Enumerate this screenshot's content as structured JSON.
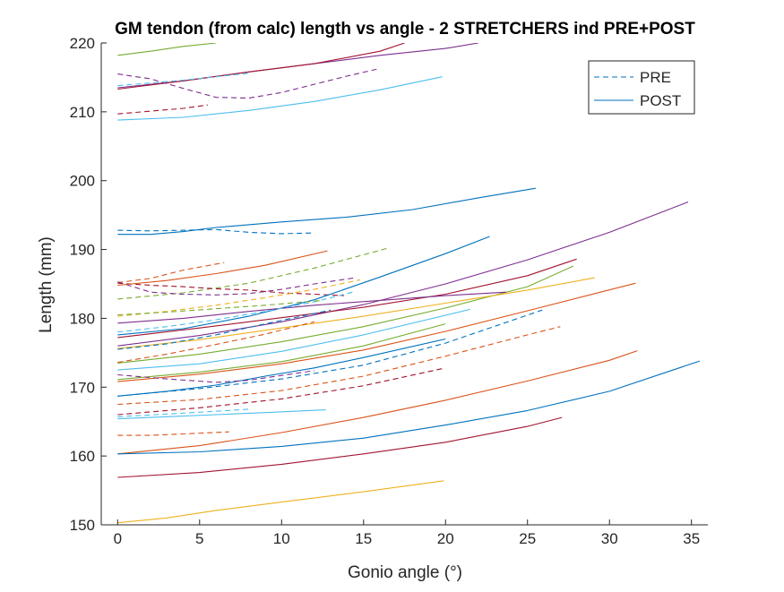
{
  "chart_data": {
    "type": "line",
    "title": "GM tendon (from calc) length vs angle - 2 STRETCHERS ind PRE+POST",
    "xlabel": "Gonio angle (°)",
    "ylabel": "Length (mm)",
    "xlim": [
      -1,
      36
    ],
    "ylim": [
      150,
      220
    ],
    "xticks": [
      0,
      5,
      10,
      15,
      20,
      25,
      30,
      35
    ],
    "yticks": [
      150,
      160,
      170,
      180,
      190,
      200,
      210,
      220
    ],
    "grid": false,
    "legend": {
      "placement": "top-right",
      "entries": [
        {
          "label": "PRE",
          "style": "dashed",
          "color": "#0072BD"
        },
        {
          "label": "POST",
          "style": "solid",
          "color": "#0072BD"
        }
      ]
    },
    "series": [
      {
        "style": "solid",
        "color": "#77AC30",
        "x": [
          0,
          2,
          4,
          6
        ],
        "y": [
          218.2,
          218.8,
          219.5,
          220
        ]
      },
      {
        "style": "solid",
        "color": "#7E2F8E",
        "x": [
          0,
          4,
          8,
          12,
          16,
          20,
          22
        ],
        "y": [
          213.5,
          214.5,
          215.8,
          217,
          218.2,
          219.2,
          220
        ]
      },
      {
        "style": "solid",
        "color": "#A2142F",
        "x": [
          0,
          4,
          8,
          12,
          16,
          17.5
        ],
        "y": [
          213.3,
          214.5,
          215.8,
          217,
          218.8,
          220
        ]
      },
      {
        "style": "solid",
        "color": "#4DBEEE",
        "x": [
          0,
          4,
          8,
          12,
          16,
          19.8
        ],
        "y": [
          208.8,
          209.2,
          210.2,
          211.5,
          213.2,
          215.1
        ]
      },
      {
        "style": "dashed",
        "color": "#7E2F8E",
        "x": [
          0,
          2,
          4,
          6,
          8,
          10,
          12,
          14,
          16
        ],
        "y": [
          215.5,
          214.8,
          213.4,
          212.1,
          212,
          212.8,
          214,
          215.2,
          216.3
        ]
      },
      {
        "style": "dashed",
        "color": "#4DBEEE",
        "x": [
          0,
          2,
          4,
          6,
          8
        ],
        "y": [
          213.8,
          214.2,
          214.6,
          215.1,
          215.6
        ]
      },
      {
        "style": "dashed",
        "color": "#A2142F",
        "x": [
          0,
          2,
          4,
          5.5
        ],
        "y": [
          209.7,
          210.1,
          210.5,
          211
        ]
      },
      {
        "style": "solid",
        "color": "#0072BD",
        "x": [
          0,
          2,
          4,
          6,
          10,
          14,
          18,
          22,
          25.5
        ],
        "y": [
          192.2,
          192.2,
          192.6,
          193.2,
          194,
          194.7,
          195.8,
          197.5,
          198.9
        ]
      },
      {
        "style": "dashed",
        "color": "#0072BD",
        "x": [
          0,
          2,
          4,
          6,
          8,
          10,
          12
        ],
        "y": [
          192.8,
          192.7,
          192.8,
          192.9,
          192.5,
          192.3,
          192.4
        ]
      },
      {
        "style": "dashed",
        "color": "#D95319",
        "x": [
          0,
          2,
          4,
          6.5
        ],
        "y": [
          185.2,
          185.8,
          187,
          188.1
        ]
      },
      {
        "style": "dashed",
        "color": "#77AC30",
        "x": [
          0,
          4,
          8,
          12,
          16.5
        ],
        "y": [
          182.8,
          183.7,
          185.1,
          187.3,
          190.2
        ]
      },
      {
        "style": "dashed",
        "color": "#7E2F8E",
        "x": [
          0,
          2,
          4,
          6,
          8,
          10,
          12,
          14.5
        ],
        "y": [
          185.3,
          183.8,
          183.5,
          183.4,
          183.6,
          184.2,
          185,
          185.9
        ]
      },
      {
        "style": "dashed",
        "color": "#A2142F",
        "x": [
          0,
          2,
          4,
          6,
          8,
          10,
          12,
          13.8
        ],
        "y": [
          185.1,
          184.8,
          184.6,
          184.3,
          184.1,
          183.7,
          183.5,
          183.3
        ]
      },
      {
        "style": "solid",
        "color": "#D95319",
        "x": [
          0,
          3,
          6,
          9,
          12.8
        ],
        "y": [
          184.8,
          185.5,
          186.5,
          187.7,
          189.8
        ]
      },
      {
        "style": "solid",
        "color": "#0072BD",
        "x": [
          0,
          4,
          8,
          12,
          16,
          20,
          22.7
        ],
        "y": [
          177.6,
          178.5,
          180.3,
          182.7,
          186,
          189.4,
          191.9
        ]
      },
      {
        "style": "solid",
        "color": "#7E2F8E",
        "x": [
          0,
          5,
          10,
          15,
          20,
          25,
          30,
          34.8
        ],
        "y": [
          176,
          177.5,
          179.5,
          182,
          185,
          188.5,
          192.5,
          196.9
        ]
      },
      {
        "style": "solid",
        "color": "#A2142F",
        "x": [
          0,
          5,
          10,
          15,
          20,
          25,
          28
        ],
        "y": [
          177.2,
          178.6,
          180.1,
          181.6,
          183.5,
          186.2,
          188.6
        ]
      },
      {
        "style": "solid",
        "color": "#77AC30",
        "x": [
          0,
          5,
          10,
          15,
          20,
          25,
          27.8
        ],
        "y": [
          173.5,
          174.8,
          176.6,
          178.8,
          181.5,
          184.6,
          187.6
        ]
      },
      {
        "style": "solid",
        "color": "#EDB120",
        "x": [
          0,
          5,
          10,
          15,
          20,
          25,
          29.1
        ],
        "y": [
          175.6,
          176.9,
          178.6,
          180.3,
          182.2,
          184.1,
          185.9
        ]
      },
      {
        "style": "solid",
        "color": "#4DBEEE",
        "x": [
          0,
          5,
          10,
          15,
          21.5
        ],
        "y": [
          172.5,
          173.4,
          175.2,
          177.6,
          181.3
        ]
      },
      {
        "style": "solid",
        "color": "#7E2F8E",
        "x": [
          0,
          4,
          8,
          12,
          16,
          20,
          23.7
        ],
        "y": [
          179.3,
          180,
          181,
          181.9,
          182.6,
          183.3,
          183.8
        ]
      },
      {
        "style": "dashed",
        "color": "#EDB120",
        "x": [
          0,
          3,
          6,
          9,
          12,
          14.8
        ],
        "y": [
          180.3,
          181,
          181.9,
          183,
          184.2,
          185.6
        ]
      },
      {
        "style": "dashed",
        "color": "#4DBEEE",
        "x": [
          0,
          3,
          6,
          9,
          12,
          14.5
        ],
        "y": [
          178,
          178.8,
          179.8,
          181,
          182.4,
          183.9
        ]
      },
      {
        "style": "dashed",
        "color": "#0072BD",
        "x": [
          0,
          3,
          6,
          9,
          13
        ],
        "y": [
          175.5,
          176.3,
          177.6,
          179.2,
          181.2
        ]
      },
      {
        "style": "dashed",
        "color": "#77AC30",
        "x": [
          0,
          3,
          6,
          9,
          12.5
        ],
        "y": [
          180.5,
          180.9,
          181.4,
          181.9,
          182.6
        ]
      },
      {
        "style": "dashed",
        "color": "#D95319",
        "x": [
          0,
          3,
          6,
          9,
          12
        ],
        "y": [
          173.6,
          174.8,
          176.2,
          177.7,
          179.5
        ]
      },
      {
        "style": "solid",
        "color": "#D95319",
        "x": [
          0,
          5,
          10,
          15,
          20,
          25,
          31.6
        ],
        "y": [
          170.8,
          171.9,
          173.4,
          175.4,
          178.1,
          181.1,
          185.1
        ]
      },
      {
        "style": "solid",
        "color": "#77AC30",
        "x": [
          0,
          5,
          10,
          15,
          20
        ],
        "y": [
          171.1,
          172.2,
          173.7,
          176,
          179.2
        ]
      },
      {
        "style": "solid",
        "color": "#0072BD",
        "x": [
          0,
          3,
          6,
          9,
          12,
          15,
          20
        ],
        "y": [
          168.7,
          169.4,
          170.3,
          171.6,
          172.8,
          174.3,
          177
        ]
      },
      {
        "style": "dashed",
        "color": "#0072BD",
        "x": [
          0,
          5,
          10,
          15,
          20,
          25.9
        ],
        "y": [
          168.7,
          169.8,
          171.2,
          173.2,
          176.4,
          181.2
        ]
      },
      {
        "style": "dashed",
        "color": "#D95319",
        "x": [
          0,
          5,
          10,
          15,
          20,
          25,
          27
        ],
        "y": [
          167.5,
          168.2,
          169.5,
          171.6,
          174.5,
          177.6,
          178.8
        ]
      },
      {
        "style": "dashed",
        "color": "#A2142F",
        "x": [
          0,
          5,
          10,
          15,
          20
        ],
        "y": [
          166,
          167,
          168.3,
          170.2,
          172.8
        ]
      },
      {
        "style": "dashed",
        "color": "#7E2F8E",
        "x": [
          0,
          3,
          6,
          8,
          10,
          12
        ],
        "y": [
          171.8,
          171.2,
          170.7,
          171,
          171.7,
          172.4
        ]
      },
      {
        "style": "dashed",
        "color": "#4DBEEE",
        "x": [
          0,
          3,
          6,
          8
        ],
        "y": [
          165.7,
          166.1,
          166.5,
          166.8
        ]
      },
      {
        "style": "solid",
        "color": "#4DBEEE",
        "x": [
          0,
          3,
          6,
          9,
          12.7
        ],
        "y": [
          165.4,
          165.7,
          166,
          166.3,
          166.7
        ]
      },
      {
        "style": "dashed",
        "color": "#D95319",
        "x": [
          0,
          2,
          4,
          6.8
        ],
        "y": [
          163,
          163,
          163.2,
          163.5
        ]
      },
      {
        "style": "solid",
        "color": "#D95319",
        "x": [
          0,
          5,
          10,
          15,
          20,
          25,
          30,
          31.7
        ],
        "y": [
          160.3,
          161.5,
          163.4,
          165.6,
          168.1,
          170.9,
          173.9,
          175.3
        ]
      },
      {
        "style": "solid",
        "color": "#0072BD",
        "x": [
          0,
          5,
          10,
          15,
          20,
          25,
          30,
          35.5
        ],
        "y": [
          160.3,
          160.6,
          161.4,
          162.6,
          164.5,
          166.6,
          169.4,
          173.8
        ]
      },
      {
        "style": "solid",
        "color": "#A2142F",
        "x": [
          0,
          5,
          10,
          15,
          20,
          25,
          27.1
        ],
        "y": [
          156.9,
          157.6,
          158.8,
          160.3,
          162,
          164.3,
          165.6
        ]
      },
      {
        "style": "solid",
        "color": "#EDB120",
        "x": [
          0,
          3,
          6,
          10,
          15,
          19.9
        ],
        "y": [
          150.3,
          151,
          152.1,
          153.3,
          154.8,
          156.4
        ]
      }
    ]
  }
}
